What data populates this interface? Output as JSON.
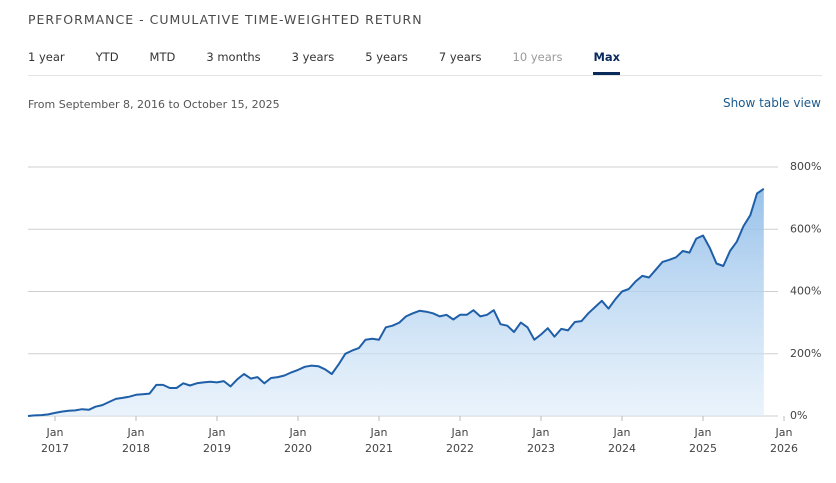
{
  "header": {
    "title": "PERFORMANCE - CUMULATIVE TIME-WEIGHTED RETURN"
  },
  "tabs": [
    "1 year",
    "YTD",
    "MTD",
    "3 months",
    "3 years",
    "5 years",
    "7 years",
    "10 years",
    "Max"
  ],
  "disabled_tab": "10 years",
  "active_tab": "Max",
  "date_range": "From September 8, 2016 to October 15, 2025",
  "link": "Show table view",
  "chart_data": {
    "type": "area",
    "color": "#1f5fa8",
    "grid": true,
    "x": [
      "2016-09",
      "2016-10",
      "2016-11",
      "2016-12",
      "2017-01",
      "2017-02",
      "2017-03",
      "2017-04",
      "2017-05",
      "2017-06",
      "2017-07",
      "2017-08",
      "2017-09",
      "2017-10",
      "2017-11",
      "2017-12",
      "2018-01",
      "2018-02",
      "2018-03",
      "2018-04",
      "2018-05",
      "2018-06",
      "2018-07",
      "2018-08",
      "2018-09",
      "2018-10",
      "2018-11",
      "2018-12",
      "2019-01",
      "2019-02",
      "2019-03",
      "2019-04",
      "2019-05",
      "2019-06",
      "2019-07",
      "2019-08",
      "2019-09",
      "2019-10",
      "2019-11",
      "2019-12",
      "2020-01",
      "2020-02",
      "2020-03",
      "2020-04",
      "2020-05",
      "2020-06",
      "2020-07",
      "2020-08",
      "2020-09",
      "2020-10",
      "2020-11",
      "2020-12",
      "2021-01",
      "2021-02",
      "2021-03",
      "2021-04",
      "2021-05",
      "2021-06",
      "2021-07",
      "2021-08",
      "2021-09",
      "2021-10",
      "2021-11",
      "2021-12",
      "2022-01",
      "2022-02",
      "2022-03",
      "2022-04",
      "2022-05",
      "2022-06",
      "2022-07",
      "2022-08",
      "2022-09",
      "2022-10",
      "2022-11",
      "2022-12",
      "2023-01",
      "2023-02",
      "2023-03",
      "2023-04",
      "2023-05",
      "2023-06",
      "2023-07",
      "2023-08",
      "2023-09",
      "2023-10",
      "2023-11",
      "2023-12",
      "2024-01",
      "2024-02",
      "2024-03",
      "2024-04",
      "2024-05",
      "2024-06",
      "2024-07",
      "2024-08",
      "2024-09",
      "2024-10",
      "2024-11",
      "2024-12",
      "2025-01",
      "2025-02",
      "2025-03",
      "2025-04",
      "2025-05",
      "2025-06",
      "2025-07",
      "2025-08",
      "2025-09",
      "2025-10"
    ],
    "values": [
      0,
      2,
      3,
      5,
      10,
      14,
      17,
      18,
      22,
      20,
      30,
      35,
      45,
      55,
      58,
      62,
      68,
      70,
      72,
      100,
      100,
      90,
      90,
      105,
      98,
      105,
      108,
      110,
      108,
      112,
      95,
      118,
      135,
      120,
      125,
      105,
      122,
      125,
      130,
      140,
      148,
      158,
      162,
      160,
      150,
      135,
      165,
      200,
      210,
      218,
      245,
      248,
      245,
      285,
      290,
      300,
      320,
      330,
      338,
      335,
      330,
      320,
      325,
      310,
      325,
      325,
      340,
      320,
      325,
      340,
      295,
      290,
      270,
      300,
      285,
      245,
      262,
      282,
      255,
      280,
      275,
      302,
      305,
      330,
      350,
      370,
      345,
      375,
      400,
      408,
      432,
      450,
      445,
      470,
      495,
      502,
      510,
      530,
      525,
      570,
      580,
      540,
      490,
      482,
      530,
      560,
      610,
      645,
      715,
      730
    ],
    "xlim": [
      "2016-09",
      "2026-01"
    ],
    "xticks": [
      {
        "value": "2017-01",
        "label": [
          "Jan",
          "2017"
        ]
      },
      {
        "value": "2018-01",
        "label": [
          "Jan",
          "2018"
        ]
      },
      {
        "value": "2019-01",
        "label": [
          "Jan",
          "2019"
        ]
      },
      {
        "value": "2020-01",
        "label": [
          "Jan",
          "2020"
        ]
      },
      {
        "value": "2021-01",
        "label": [
          "Jan",
          "2021"
        ]
      },
      {
        "value": "2022-01",
        "label": [
          "Jan",
          "2022"
        ]
      },
      {
        "value": "2023-01",
        "label": [
          "Jan",
          "2023"
        ]
      },
      {
        "value": "2024-01",
        "label": [
          "Jan",
          "2024"
        ]
      },
      {
        "value": "2025-01",
        "label": [
          "Jan",
          "2025"
        ]
      },
      {
        "value": "2026-01",
        "label": [
          "Jan",
          "2026"
        ]
      }
    ],
    "ylim": [
      0,
      800
    ],
    "yticks": [
      {
        "value": 0,
        "label": "0%"
      },
      {
        "value": 200,
        "label": "200%"
      },
      {
        "value": 400,
        "label": "400%"
      },
      {
        "value": 600,
        "label": "600%"
      },
      {
        "value": 800,
        "label": "800%"
      }
    ]
  }
}
